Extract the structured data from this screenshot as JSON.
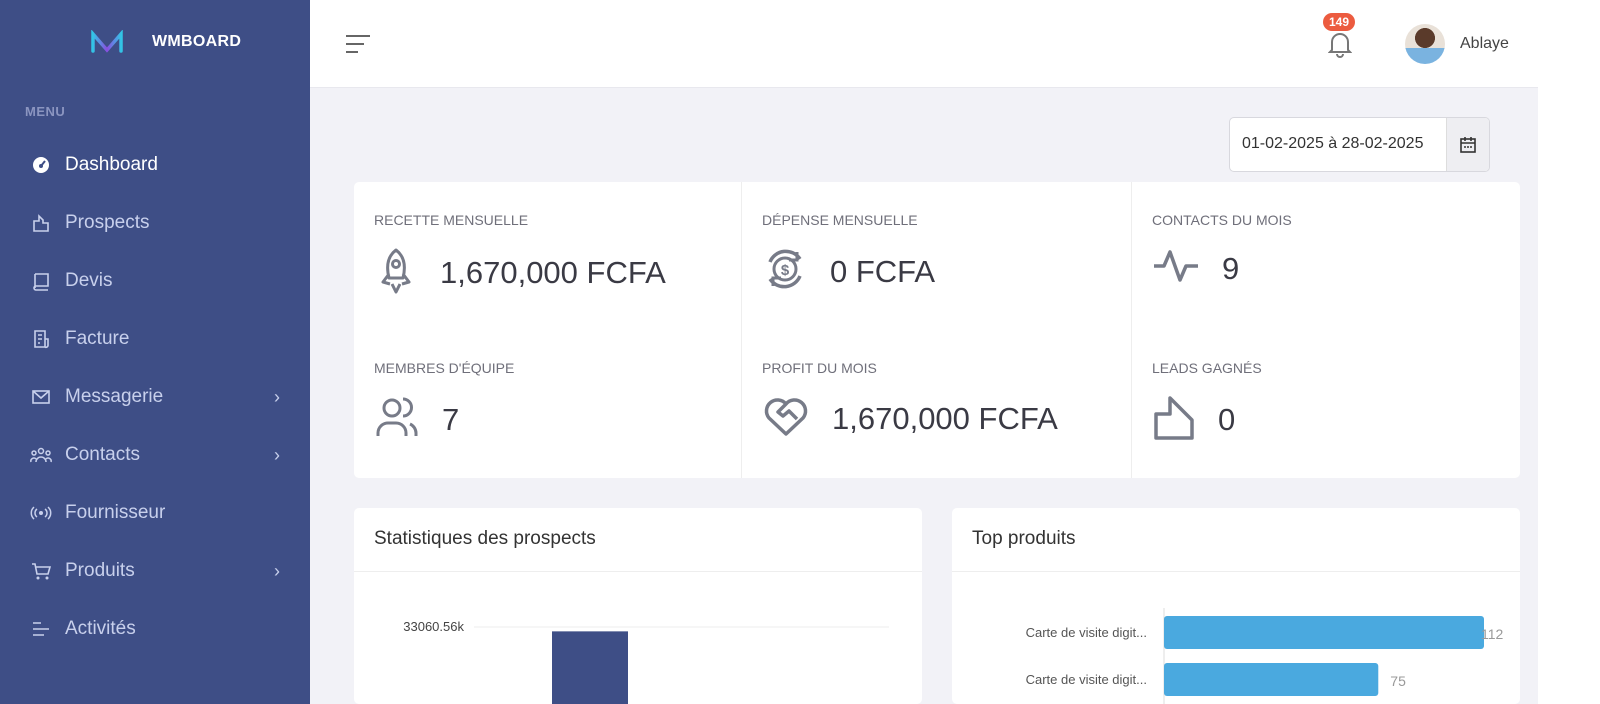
{
  "brand": {
    "name": "WMBOARD"
  },
  "sidebar": {
    "menu_title": "MENU",
    "items": [
      {
        "label": "Dashboard",
        "icon": "gauge-icon",
        "active": true,
        "submenu": false
      },
      {
        "label": "Prospects",
        "icon": "chart-icon",
        "submenu": false
      },
      {
        "label": "Devis",
        "icon": "book-icon",
        "submenu": false
      },
      {
        "label": "Facture",
        "icon": "receipt-icon",
        "submenu": false
      },
      {
        "label": "Messagerie",
        "icon": "mail-icon",
        "submenu": true
      },
      {
        "label": "Contacts",
        "icon": "people-icon",
        "submenu": true
      },
      {
        "label": "Fournisseur",
        "icon": "broadcast-icon",
        "submenu": false
      },
      {
        "label": "Produits",
        "icon": "cart-icon",
        "submenu": true
      },
      {
        "label": "Activités",
        "icon": "list-icon",
        "submenu": false
      }
    ]
  },
  "header": {
    "notifications": "149",
    "user": "Ablaye"
  },
  "date_range": "01-02-2025 à 28-02-2025",
  "stats": [
    {
      "label": "Recette mensuelle",
      "value": "1,670,000 FCFA",
      "icon": "rocket-icon"
    },
    {
      "label": "Dépense mensuelle",
      "value": "0 FCFA",
      "icon": "dollar-cycle-icon"
    },
    {
      "label": "Contacts du mois",
      "value": "9",
      "icon": "pulse-icon"
    },
    {
      "label": "Membres d'équipe",
      "value": "7",
      "icon": "users-icon"
    },
    {
      "label": "Profit du mois",
      "value": "1,670,000 FCFA",
      "icon": "heart-handshake-icon"
    },
    {
      "label": "Leads gagnés",
      "value": "0",
      "icon": "building-icon"
    }
  ],
  "colors": {
    "sidebar": "#3e4e86",
    "bar_prospects": "#3e4e86",
    "bar_products": "#4aa9df",
    "badge": "#ec5b3f"
  },
  "chart_data": [
    {
      "type": "bar",
      "title": "Statistiques des prospects",
      "y_tick_labels": [
        "33060.56k"
      ],
      "values": [
        33060.56
      ],
      "unit": "k"
    },
    {
      "type": "bar",
      "orientation": "horizontal",
      "title": "Top produits",
      "categories": [
        "Carte de visite digit...",
        "Carte de visite digit..."
      ],
      "values": [
        112,
        75
      ]
    }
  ]
}
